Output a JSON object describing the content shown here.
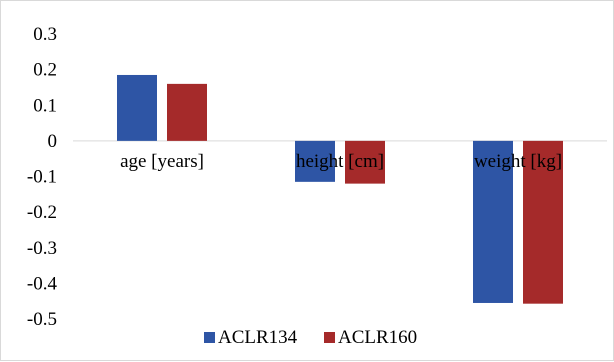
{
  "chart_data": {
    "type": "bar",
    "title": "",
    "xlabel": "",
    "ylabel": "",
    "categories": [
      "age [years]",
      "height [cm]",
      "weight [kg]"
    ],
    "series": [
      {
        "name": "ACLR134",
        "color": "#2e55a5",
        "values": [
          0.185,
          -0.115,
          -0.455
        ]
      },
      {
        "name": "ACLR160",
        "color": "#a52a2a",
        "values": [
          0.16,
          -0.12,
          -0.457
        ]
      }
    ],
    "ylim": [
      -0.5,
      0.3
    ],
    "yticks": [
      0.3,
      0.2,
      0.1,
      0,
      -0.1,
      -0.2,
      -0.3,
      -0.4,
      -0.5
    ],
    "ytick_labels": [
      "0.3",
      "0.2",
      "0.1",
      "0",
      "-0.1",
      "-0.2",
      "-0.3",
      "-0.4",
      "-0.5"
    ],
    "grid": false,
    "legend": "bottom"
  }
}
